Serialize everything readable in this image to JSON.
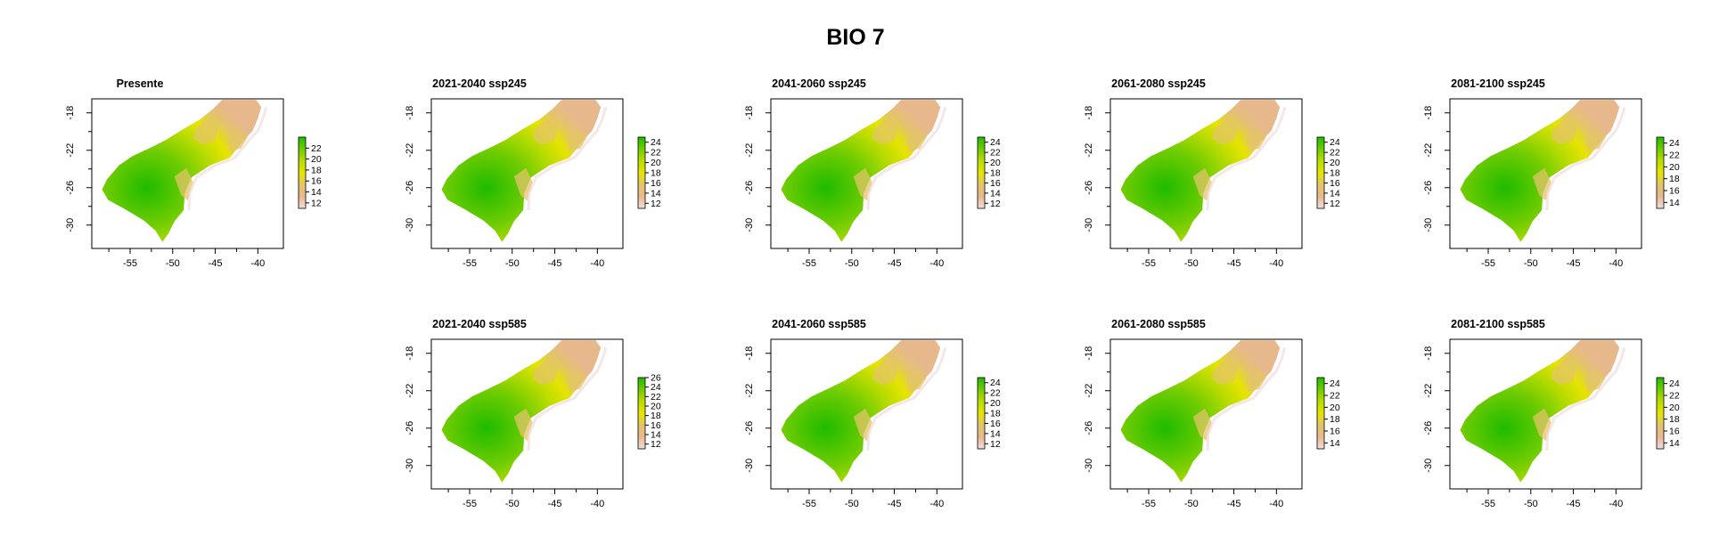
{
  "title": "BIO 7",
  "colors": {
    "ramp": [
      "#f2dcdc",
      "#e8b88d",
      "#e3c46a",
      "#e6e400",
      "#b8dc00",
      "#6fcc00",
      "#1fbb00"
    ],
    "frame": "#000000"
  },
  "chart_data": [
    {
      "type": "heatmap",
      "title": "Presente",
      "row": 0,
      "col": 0,
      "xticks": [
        "-55",
        "-50",
        "-45",
        "-40"
      ],
      "yticks": [
        "-18",
        "-22",
        "-26",
        "-30"
      ],
      "legend_ticks": [
        "22",
        "20",
        "18",
        "16",
        "14",
        "12"
      ],
      "legend_range": [
        11,
        24
      ]
    },
    {
      "type": "heatmap",
      "title": "2021-2040 ssp245",
      "row": 0,
      "col": 1,
      "xticks": [
        "-55",
        "-50",
        "-45",
        "-40"
      ],
      "yticks": [
        "-18",
        "-22",
        "-26",
        "-30"
      ],
      "legend_ticks": [
        "24",
        "22",
        "20",
        "18",
        "16",
        "14",
        "12"
      ],
      "legend_range": [
        11,
        25
      ]
    },
    {
      "type": "heatmap",
      "title": "2041-2060 ssp245",
      "row": 0,
      "col": 2,
      "xticks": [
        "-55",
        "-50",
        "-45",
        "-40"
      ],
      "yticks": [
        "-18",
        "-22",
        "-26",
        "-30"
      ],
      "legend_ticks": [
        "24",
        "22",
        "20",
        "18",
        "16",
        "14",
        "12"
      ],
      "legend_range": [
        11,
        25
      ]
    },
    {
      "type": "heatmap",
      "title": "2061-2080 ssp245",
      "row": 0,
      "col": 3,
      "xticks": [
        "-55",
        "-50",
        "-45",
        "-40"
      ],
      "yticks": [
        "-18",
        "-22",
        "-26",
        "-30"
      ],
      "legend_ticks": [
        "24",
        "22",
        "20",
        "18",
        "16",
        "14",
        "12"
      ],
      "legend_range": [
        11,
        25
      ]
    },
    {
      "type": "heatmap",
      "title": "2081-2100 ssp245",
      "row": 0,
      "col": 4,
      "xticks": [
        "-55",
        "-50",
        "-45",
        "-40"
      ],
      "yticks": [
        "-18",
        "-22",
        "-26",
        "-30"
      ],
      "legend_ticks": [
        "24",
        "22",
        "20",
        "18",
        "16",
        "14"
      ],
      "legend_range": [
        13,
        25
      ]
    },
    {
      "type": "heatmap",
      "title": "2021-2040 ssp585",
      "row": 1,
      "col": 1,
      "xticks": [
        "-55",
        "-50",
        "-45",
        "-40"
      ],
      "yticks": [
        "-18",
        "-22",
        "-26",
        "-30"
      ],
      "legend_ticks": [
        "26",
        "24",
        "22",
        "20",
        "18",
        "16",
        "14",
        "12"
      ],
      "legend_range": [
        11,
        26
      ]
    },
    {
      "type": "heatmap",
      "title": "2041-2060 ssp585",
      "row": 1,
      "col": 2,
      "xticks": [
        "-55",
        "-50",
        "-45",
        "-40"
      ],
      "yticks": [
        "-18",
        "-22",
        "-26",
        "-30"
      ],
      "legend_ticks": [
        "24",
        "22",
        "20",
        "18",
        "16",
        "14",
        "12"
      ],
      "legend_range": [
        11,
        25
      ]
    },
    {
      "type": "heatmap",
      "title": "2061-2080 ssp585",
      "row": 1,
      "col": 3,
      "xticks": [
        "-55",
        "-50",
        "-45",
        "-40"
      ],
      "yticks": [
        "-18",
        "-22",
        "-26",
        "-30"
      ],
      "legend_ticks": [
        "24",
        "22",
        "20",
        "18",
        "16",
        "14"
      ],
      "legend_range": [
        13,
        25
      ]
    },
    {
      "type": "heatmap",
      "title": "2081-2100 ssp585",
      "row": 1,
      "col": 4,
      "xticks": [
        "-55",
        "-50",
        "-45",
        "-40"
      ],
      "yticks": [
        "-18",
        "-22",
        "-26",
        "-30"
      ],
      "legend_ticks": [
        "24",
        "22",
        "20",
        "18",
        "16",
        "14"
      ],
      "legend_range": [
        13,
        25
      ]
    }
  ]
}
